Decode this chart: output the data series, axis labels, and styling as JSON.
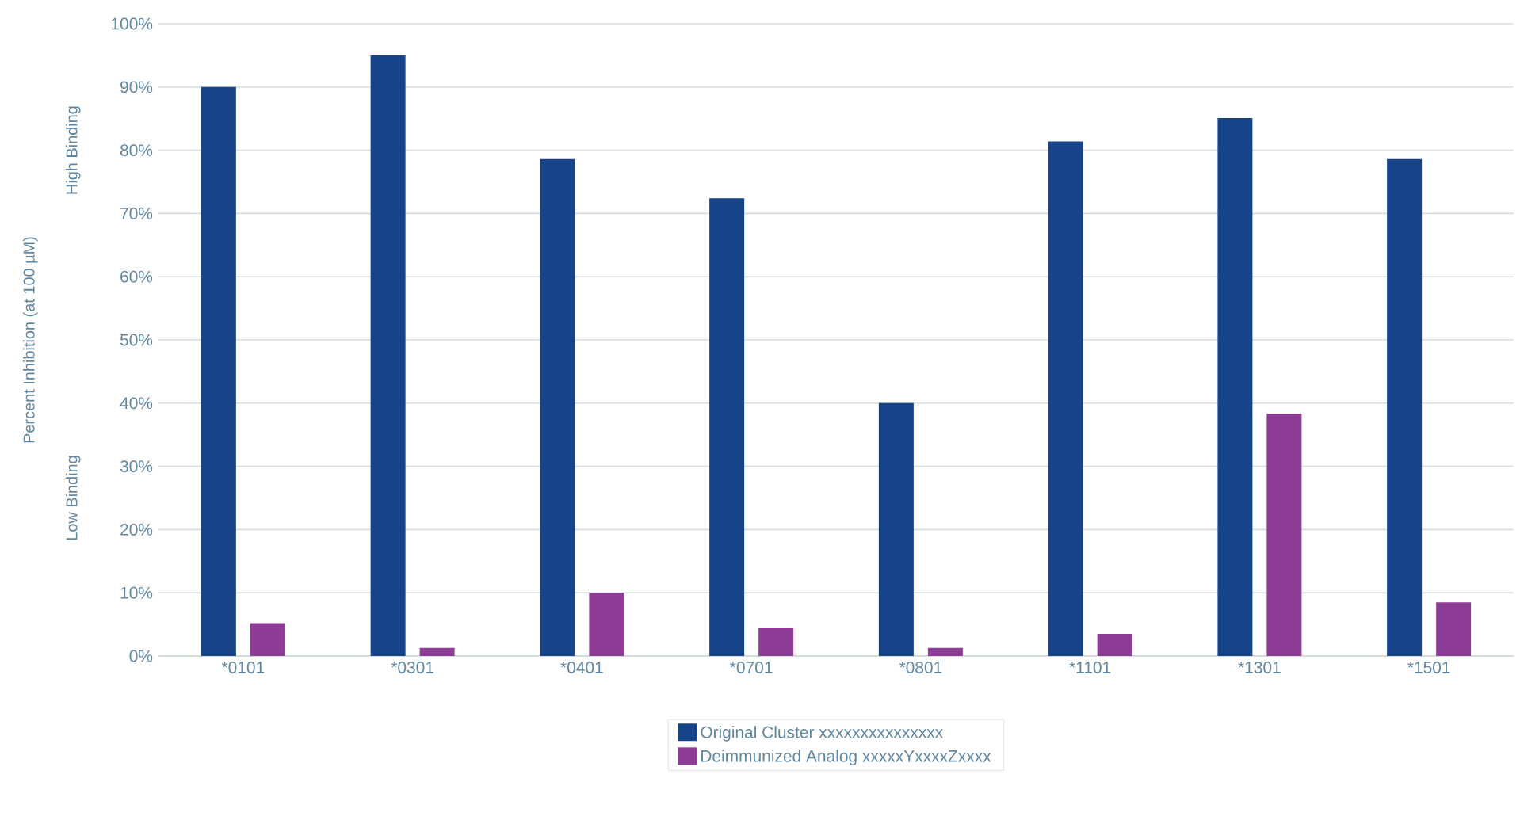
{
  "chart_data": {
    "type": "bar",
    "ylabel": "Percent Inhibition (at 100 µM)",
    "annotations": [
      "High Binding",
      "Low Binding"
    ],
    "categories": [
      "*0101",
      "*0301",
      "*0401",
      "*0701",
      "*0801",
      "*1101",
      "*1301",
      "*1501"
    ],
    "series": [
      {
        "name": "Original Cluster xxxxxxxxxxxxxxx",
        "color": "#174489",
        "values": [
          90,
          95,
          78.6,
          72.4,
          40,
          81.4,
          85.1,
          78.6
        ]
      },
      {
        "name": "Deimmunized Analog xxxxxYxxxxZxxxx",
        "color": "#8e3d96",
        "values": [
          5.2,
          1.3,
          10,
          4.5,
          1.3,
          3.5,
          38.3,
          8.5
        ]
      }
    ],
    "ylim": [
      0,
      100
    ],
    "yticks": [
      {
        "value": 0,
        "label": "0%"
      },
      {
        "value": 10,
        "label": "10%"
      },
      {
        "value": 20,
        "label": "20%"
      },
      {
        "value": 30,
        "label": "30%"
      },
      {
        "value": 40,
        "label": "40%"
      },
      {
        "value": 50,
        "label": "50%"
      },
      {
        "value": 60,
        "label": "60%"
      },
      {
        "value": 70,
        "label": "70%"
      },
      {
        "value": 80,
        "label": "80%"
      },
      {
        "value": 90,
        "label": "90%"
      },
      {
        "value": 100,
        "label": "100%"
      }
    ],
    "grid": "y",
    "legend": "bottom"
  }
}
